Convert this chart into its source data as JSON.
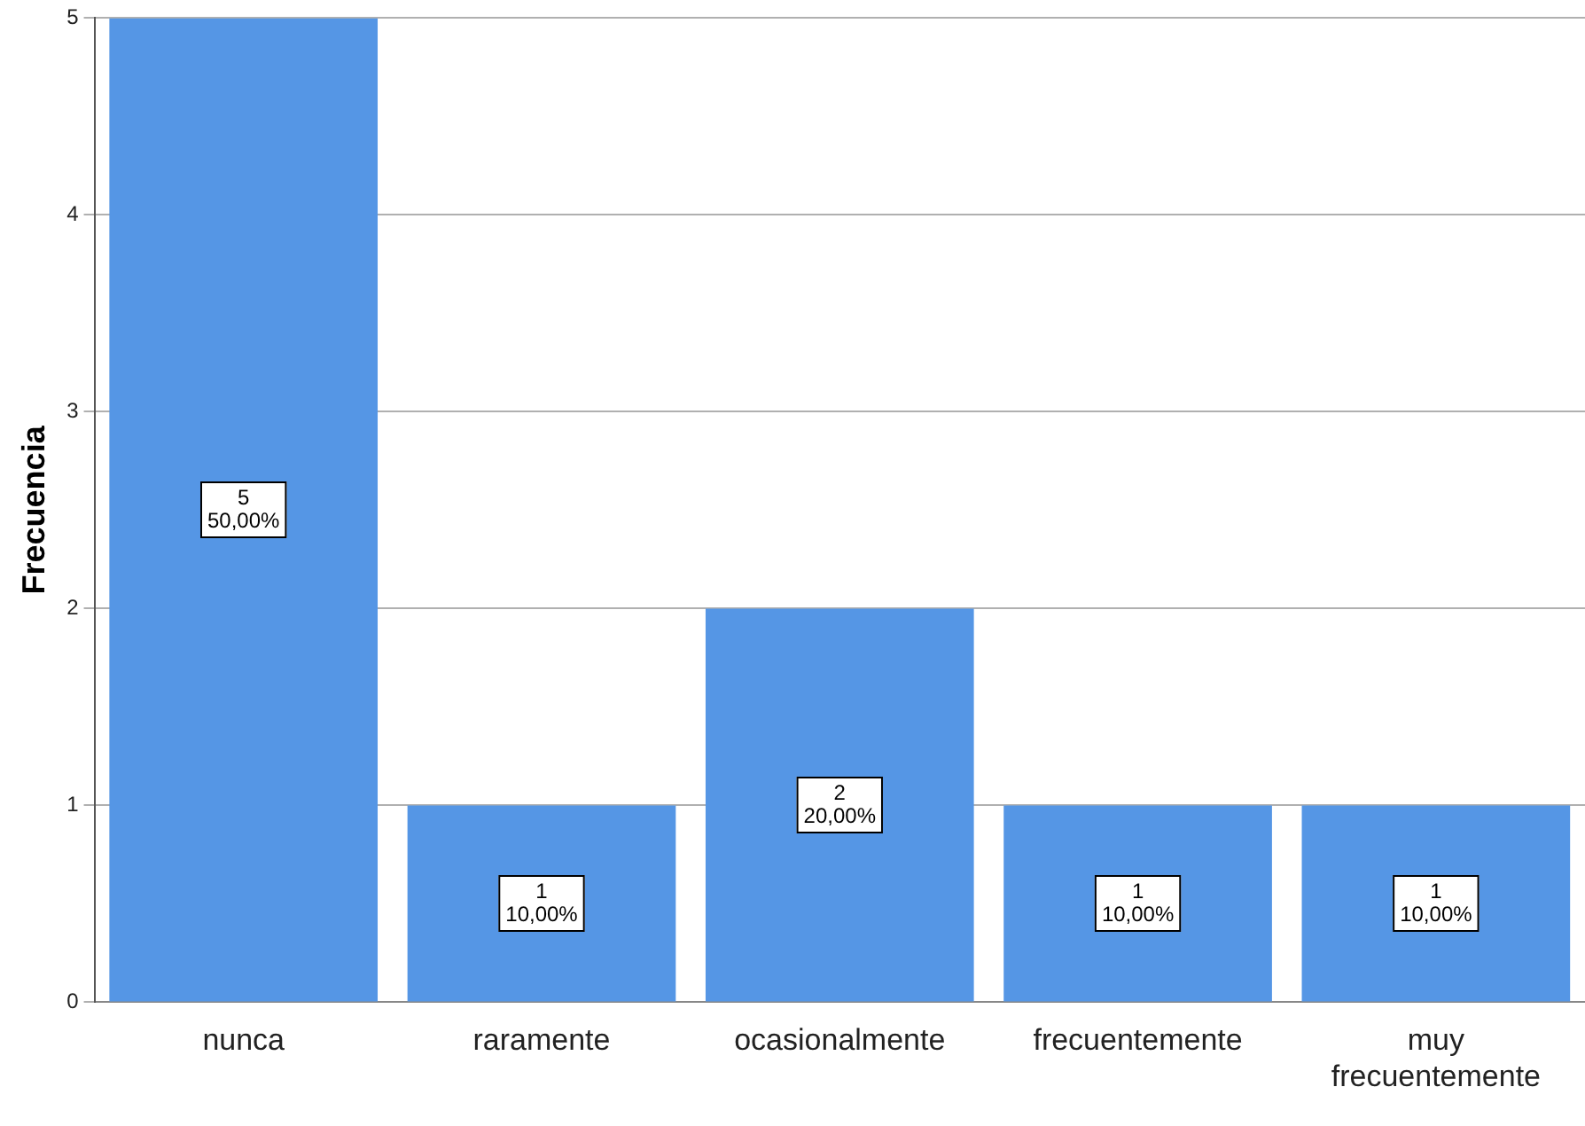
{
  "chart_data": {
    "type": "bar",
    "ylabel": "Frecuencia",
    "categories": [
      "nunca",
      "raramente",
      "ocasionalmente",
      "frecuentemente",
      "muy frecuentemente"
    ],
    "values": [
      5,
      1,
      2,
      1,
      1
    ],
    "value_labels": [
      "5\n50,00%",
      "1\n10,00%",
      "2\n20,00%",
      "1\n10,00%",
      "1\n10,00%"
    ],
    "color": "#5596e5",
    "ylim": [
      0,
      5
    ],
    "yticks": [
      0,
      1,
      2,
      3,
      4,
      5
    ],
    "grid": "y",
    "legend": false
  }
}
